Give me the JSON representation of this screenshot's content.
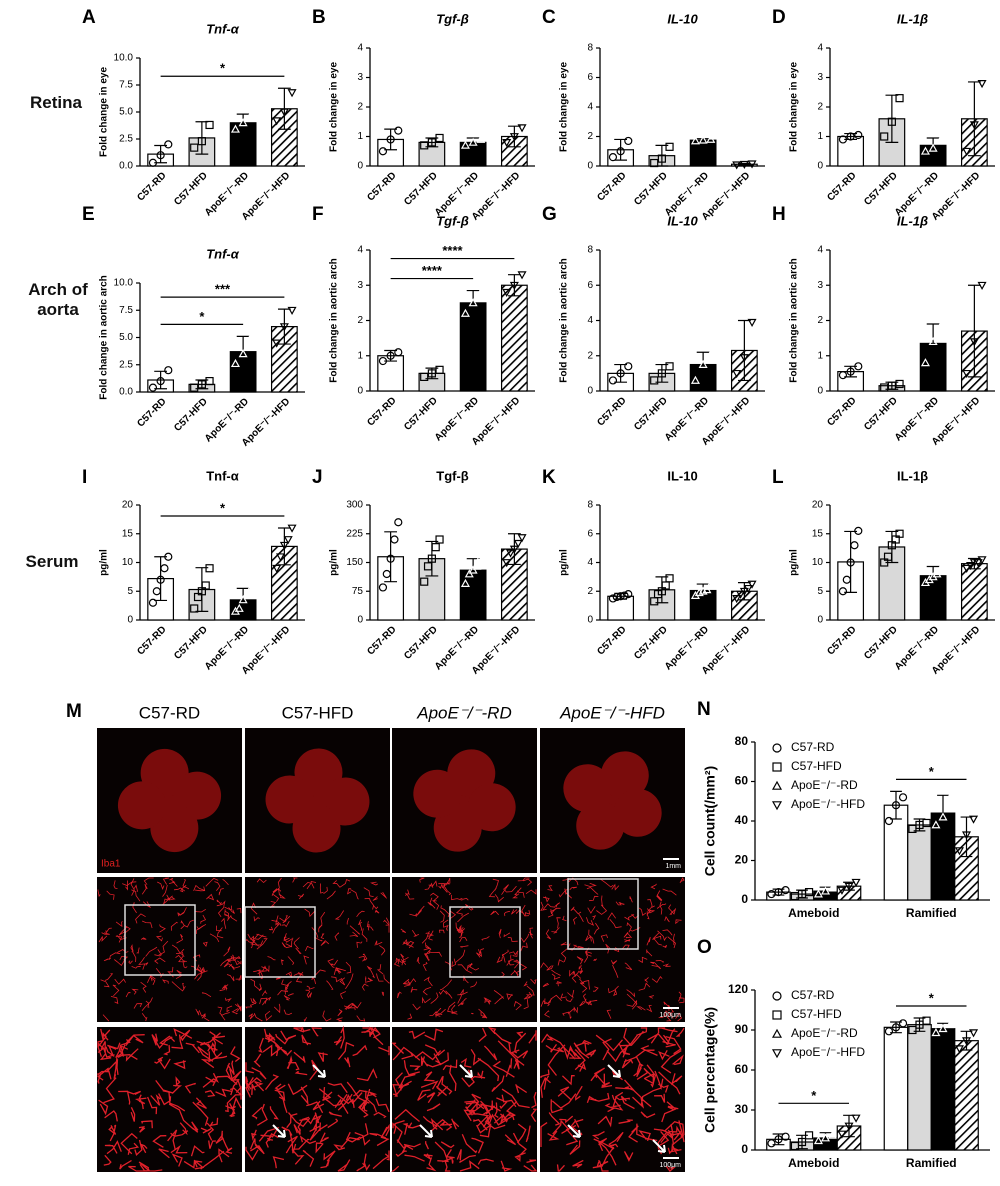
{
  "row_labels": [
    "Retina",
    "Arch of aorta",
    "Serum"
  ],
  "bar_fills": [
    "#ffffff",
    "#d9d9d9",
    "#000000",
    "hatch"
  ],
  "bar_markers": [
    "circle",
    "square",
    "triangle",
    "triangle-down"
  ],
  "figure_m": {
    "panel": "M",
    "columns": [
      "C57-RD",
      "C57-HFD",
      "ApoE⁻/⁻-RD",
      "ApoE⁻/⁻-HFD"
    ],
    "stain": "Iba1",
    "scale_bars": [
      "1mm",
      "100μm",
      "100μm"
    ]
  },
  "chart_data": [
    {
      "panel": "A",
      "type": "bar",
      "title": "Tnf-α",
      "title_italic": true,
      "ylabel": "Fold change in eye",
      "categories": [
        "C57-RD",
        "C57-HFD",
        "ApoE⁻/⁻-RD",
        "ApoE⁻/⁻-HFD"
      ],
      "values": [
        1.1,
        2.6,
        4.0,
        5.3
      ],
      "errors": [
        0.8,
        1.5,
        0.8,
        1.9
      ],
      "points": [
        [
          0.3,
          1.0,
          2.0
        ],
        [
          1.7,
          2.3,
          3.8
        ],
        [
          3.4,
          4.0,
          4.7
        ],
        [
          4.2,
          5.0,
          6.8
        ]
      ],
      "ylim": [
        0,
        10
      ],
      "yticks": [
        {
          "value": 0,
          "label": "0.0"
        },
        2.5,
        {
          "value": 5,
          "label": "5.0"
        },
        7.5,
        {
          "value": 10,
          "label": "10.0"
        }
      ],
      "significance": [
        {
          "label": "*",
          "between": [
            0,
            3
          ]
        }
      ]
    },
    {
      "panel": "B",
      "type": "bar",
      "title": "Tgf-β",
      "title_italic": true,
      "ylabel": "Fold change in eye",
      "categories": [
        "C57-RD",
        "C57-HFD",
        "ApoE⁻/⁻-RD",
        "ApoE⁻/⁻-HFD"
      ],
      "values": [
        0.9,
        0.8,
        0.8,
        1.0
      ],
      "errors": [
        0.35,
        0.15,
        0.15,
        0.35
      ],
      "points": [
        [
          0.5,
          0.9,
          1.2
        ],
        [
          0.7,
          0.8,
          0.95
        ],
        [
          0.7,
          0.8,
          0.9
        ],
        [
          0.8,
          1.0,
          1.3
        ]
      ],
      "ylim": [
        0,
        4
      ],
      "yticks": [
        0,
        1,
        2,
        3,
        4
      ]
    },
    {
      "panel": "C",
      "type": "bar",
      "title": "IL-10",
      "title_italic": true,
      "ylabel": "Fold change in eye",
      "categories": [
        "C57-RD",
        "C57-HFD",
        "ApoE⁻/⁻-RD",
        "ApoE⁻/⁻-HFD"
      ],
      "values": [
        1.1,
        0.7,
        1.75,
        0.12
      ],
      "errors": [
        0.7,
        0.7,
        0.1,
        0.06
      ],
      "points": [
        [
          0.6,
          1.0,
          1.7
        ],
        [
          0.2,
          0.5,
          1.3
        ],
        [
          1.7,
          1.75,
          1.8
        ],
        [
          0.08,
          0.12,
          0.15
        ]
      ],
      "ylim": [
        0,
        8
      ],
      "yticks": [
        0,
        2,
        4,
        6,
        8
      ]
    },
    {
      "panel": "D",
      "type": "bar",
      "title": "IL-1β",
      "title_italic": true,
      "ylabel": "Fold change in eye",
      "categories": [
        "C57-RD",
        "C57-HFD",
        "ApoE⁻/⁻-RD",
        "ApoE⁻/⁻-HFD"
      ],
      "values": [
        1.0,
        1.6,
        0.7,
        1.6
      ],
      "errors": [
        0.1,
        0.8,
        0.25,
        1.25
      ],
      "points": [
        [
          0.9,
          1.0,
          1.05
        ],
        [
          1.0,
          1.5,
          2.3
        ],
        [
          0.5,
          0.6,
          0.9
        ],
        [
          0.5,
          1.4,
          2.8
        ]
      ],
      "ylim": [
        0,
        4
      ],
      "yticks": [
        0,
        1,
        2,
        3,
        4
      ]
    },
    {
      "panel": "E",
      "type": "bar",
      "title": "Tnf-α",
      "title_italic": true,
      "ylabel": "Fold change in aortic arch",
      "categories": [
        "C57-RD",
        "C57-HFD",
        "ApoE⁻/⁻-RD",
        "ApoE⁻/⁻-HFD"
      ],
      "values": [
        1.1,
        0.7,
        3.7,
        6.0
      ],
      "errors": [
        0.8,
        0.4,
        1.4,
        1.6
      ],
      "points": [
        [
          0.4,
          1.0,
          2.0
        ],
        [
          0.4,
          0.7,
          1.0
        ],
        [
          2.6,
          3.5,
          5.0
        ],
        [
          4.5,
          6.0,
          7.5
        ]
      ],
      "ylim": [
        0,
        10
      ],
      "yticks": [
        {
          "value": 0,
          "label": "0.0"
        },
        2.5,
        {
          "value": 5,
          "label": "5.0"
        },
        7.5,
        {
          "value": 10,
          "label": "10.0"
        }
      ],
      "significance": [
        {
          "label": "*",
          "between": [
            0,
            2
          ]
        },
        {
          "label": "***",
          "between": [
            0,
            3
          ]
        }
      ]
    },
    {
      "panel": "F",
      "type": "bar",
      "title": "Tgf-β",
      "title_italic": true,
      "ylabel": "Fold change in aortic arch",
      "categories": [
        "C57-RD",
        "C57-HFD",
        "ApoE⁻/⁻-RD",
        "ApoE⁻/⁻-HFD"
      ],
      "values": [
        1.0,
        0.5,
        2.5,
        3.0
      ],
      "errors": [
        0.15,
        0.15,
        0.35,
        0.3
      ],
      "points": [
        [
          0.85,
          1.0,
          1.1
        ],
        [
          0.4,
          0.5,
          0.6
        ],
        [
          2.2,
          2.5,
          2.8
        ],
        [
          2.8,
          3.0,
          3.3
        ]
      ],
      "ylim": [
        0,
        4
      ],
      "yticks": [
        0,
        1,
        2,
        3,
        4
      ],
      "significance": [
        {
          "label": "****",
          "between": [
            0,
            2
          ]
        },
        {
          "label": "****",
          "between": [
            0,
            3
          ]
        }
      ]
    },
    {
      "panel": "G",
      "type": "bar",
      "title": "IL-10",
      "title_italic": true,
      "ylabel": "Fold change in aortic arch",
      "categories": [
        "C57-RD",
        "C57-HFD",
        "ApoE⁻/⁻-RD",
        "ApoE⁻/⁻-HFD"
      ],
      "values": [
        1.0,
        1.0,
        1.5,
        2.3
      ],
      "errors": [
        0.5,
        0.5,
        0.7,
        1.7
      ],
      "points": [
        [
          0.6,
          1.0,
          1.4
        ],
        [
          0.6,
          1.0,
          1.4
        ],
        [
          0.6,
          1.5,
          2.1
        ],
        [
          1.0,
          1.9,
          3.9
        ]
      ],
      "ylim": [
        0,
        8
      ],
      "yticks": [
        0,
        2,
        4,
        6,
        8
      ]
    },
    {
      "panel": "H",
      "type": "bar",
      "title": "IL-1β",
      "title_italic": true,
      "ylabel": "Fold change in aortic arch",
      "categories": [
        "C57-RD",
        "C57-HFD",
        "ApoE⁻/⁻-RD",
        "ApoE⁻/⁻-HFD"
      ],
      "values": [
        0.55,
        0.15,
        1.35,
        1.7
      ],
      "errors": [
        0.15,
        0.1,
        0.55,
        1.3
      ],
      "points": [
        [
          0.45,
          0.55,
          0.7
        ],
        [
          0.1,
          0.15,
          0.2
        ],
        [
          0.8,
          1.4,
          1.85
        ],
        [
          0.5,
          1.4,
          3.0
        ]
      ],
      "ylim": [
        0,
        4
      ],
      "yticks": [
        0,
        1,
        2,
        3,
        4
      ]
    },
    {
      "panel": "I",
      "type": "bar",
      "title": "Tnf-α",
      "title_italic": false,
      "ylabel": "pg/ml",
      "categories": [
        "C57-RD",
        "C57-HFD",
        "ApoE⁻/⁻-RD",
        "ApoE⁻/⁻-HFD"
      ],
      "values": [
        7.2,
        5.3,
        3.5,
        12.8
      ],
      "errors": [
        3.8,
        3.8,
        2.0,
        3.2
      ],
      "points": [
        [
          3,
          5,
          7,
          9,
          11
        ],
        [
          2,
          4,
          5,
          6,
          9
        ],
        [
          1.5,
          2,
          3.5,
          4.5,
          5.5
        ],
        [
          9,
          11,
          13,
          14,
          16
        ]
      ],
      "ylim": [
        0,
        20
      ],
      "yticks": [
        0,
        5,
        10,
        15,
        20
      ],
      "significance": [
        {
          "label": "*",
          "between": [
            0,
            3
          ]
        }
      ]
    },
    {
      "panel": "J",
      "type": "bar",
      "title": "Tgf-β",
      "title_italic": false,
      "ylabel": "pg/ml",
      "categories": [
        "C57-RD",
        "C57-HFD",
        "ApoE⁻/⁻-RD",
        "ApoE⁻/⁻-HFD"
      ],
      "values": [
        165,
        160,
        130,
        185
      ],
      "errors": [
        65,
        45,
        30,
        40
      ],
      "points": [
        [
          85,
          120,
          160,
          210,
          255
        ],
        [
          100,
          140,
          160,
          190,
          210
        ],
        [
          95,
          120,
          130,
          140,
          165
        ],
        [
          150,
          175,
          185,
          200,
          215
        ]
      ],
      "ylim": [
        0,
        300
      ],
      "yticks": [
        0,
        75,
        150,
        225,
        300
      ]
    },
    {
      "panel": "K",
      "type": "bar",
      "title": "IL-10",
      "title_italic": false,
      "ylabel": "pg/ml",
      "categories": [
        "C57-RD",
        "C57-HFD",
        "ApoE⁻/⁻-RD",
        "ApoE⁻/⁻-HFD"
      ],
      "values": [
        1.65,
        2.1,
        2.05,
        2.0
      ],
      "errors": [
        0.2,
        0.9,
        0.45,
        0.6
      ],
      "points": [
        [
          1.5,
          1.6,
          1.65,
          1.7,
          1.8
        ],
        [
          1.3,
          1.8,
          2.0,
          2.4,
          2.9
        ],
        [
          1.7,
          1.9,
          2.0,
          2.1,
          2.5
        ],
        [
          1.5,
          1.8,
          2.0,
          2.2,
          2.5
        ]
      ],
      "ylim": [
        0,
        8
      ],
      "yticks": [
        0,
        2,
        4,
        6,
        8
      ]
    },
    {
      "panel": "L",
      "type": "bar",
      "title": "IL-1β",
      "title_italic": false,
      "ylabel": "pg/ml",
      "categories": [
        "C57-RD",
        "C57-HFD",
        "ApoE⁻/⁻-RD",
        "ApoE⁻/⁻-HFD"
      ],
      "values": [
        10.1,
        12.7,
        7.7,
        9.8
      ],
      "errors": [
        5.3,
        2.7,
        1.6,
        0.9
      ],
      "points": [
        [
          5,
          7,
          10,
          13,
          15.5
        ],
        [
          10,
          11,
          13,
          14,
          15
        ],
        [
          6.5,
          7,
          7.5,
          8,
          9
        ],
        [
          9,
          9.5,
          10,
          10,
          10.5
        ]
      ],
      "ylim": [
        0,
        20
      ],
      "yticks": [
        0,
        5,
        10,
        15,
        20
      ]
    },
    {
      "panel": "N",
      "type": "grouped_bar",
      "ylabel": "Cell count(/mm²)",
      "categories": [
        "Ameboid",
        "Ramified"
      ],
      "series": [
        {
          "name": "C57-RD",
          "values": [
            4,
            48
          ],
          "errors": [
            1.5,
            7
          ],
          "points": [
            [
              3,
              4,
              5
            ],
            [
              40,
              48,
              52
            ]
          ]
        },
        {
          "name": "C57-HFD",
          "values": [
            3,
            38
          ],
          "errors": [
            2,
            3
          ],
          "points": [
            [
              2,
              3,
              4
            ],
            [
              36,
              38,
              39
            ]
          ]
        },
        {
          "name": "ApoE⁻/⁻-RD",
          "values": [
            4.5,
            44
          ],
          "errors": [
            2,
            9
          ],
          "points": [
            [
              3,
              4.5,
              6
            ],
            [
              38,
              42,
              52
            ]
          ]
        },
        {
          "name": "ApoE⁻/⁻-HFD",
          "values": [
            7,
            32
          ],
          "errors": [
            2,
            10
          ],
          "points": [
            [
              5,
              7,
              9
            ],
            [
              25,
              33,
              41
            ]
          ]
        }
      ],
      "ylim": [
        0,
        80
      ],
      "yticks": [
        0,
        20,
        40,
        60,
        80
      ],
      "significance": [
        {
          "label": "*",
          "category": 1,
          "between": [
            0,
            3
          ]
        }
      ]
    },
    {
      "panel": "O",
      "type": "grouped_bar",
      "ylabel": "Cell percentage(%)",
      "categories": [
        "Ameboid",
        "Ramified"
      ],
      "series": [
        {
          "name": "C57-RD",
          "values": [
            8,
            92
          ],
          "errors": [
            4,
            4
          ],
          "points": [
            [
              5,
              8,
              10
            ],
            [
              89,
              92,
              95
            ]
          ]
        },
        {
          "name": "C57-HFD",
          "values": [
            6,
            94
          ],
          "errors": [
            5,
            5
          ],
          "points": [
            [
              3,
              6,
              11
            ],
            [
              90,
              94,
              97
            ]
          ]
        },
        {
          "name": "ApoE⁻/⁻-RD",
          "values": [
            9,
            91
          ],
          "errors": [
            4,
            4
          ],
          "points": [
            [
              7,
              9,
              11
            ],
            [
              88,
              91,
              94
            ]
          ]
        },
        {
          "name": "ApoE⁻/⁻-HFD",
          "values": [
            18,
            82
          ],
          "errors": [
            8,
            7
          ],
          "points": [
            [
              12,
              18,
              24
            ],
            [
              76,
              82,
              88
            ]
          ]
        }
      ],
      "ylim": [
        0,
        120
      ],
      "yticks": [
        0,
        30,
        60,
        90,
        120
      ],
      "significance": [
        {
          "label": "*",
          "category": 0,
          "between": [
            0,
            3
          ]
        },
        {
          "label": "*",
          "category": 1,
          "between": [
            0,
            3
          ]
        }
      ]
    }
  ]
}
